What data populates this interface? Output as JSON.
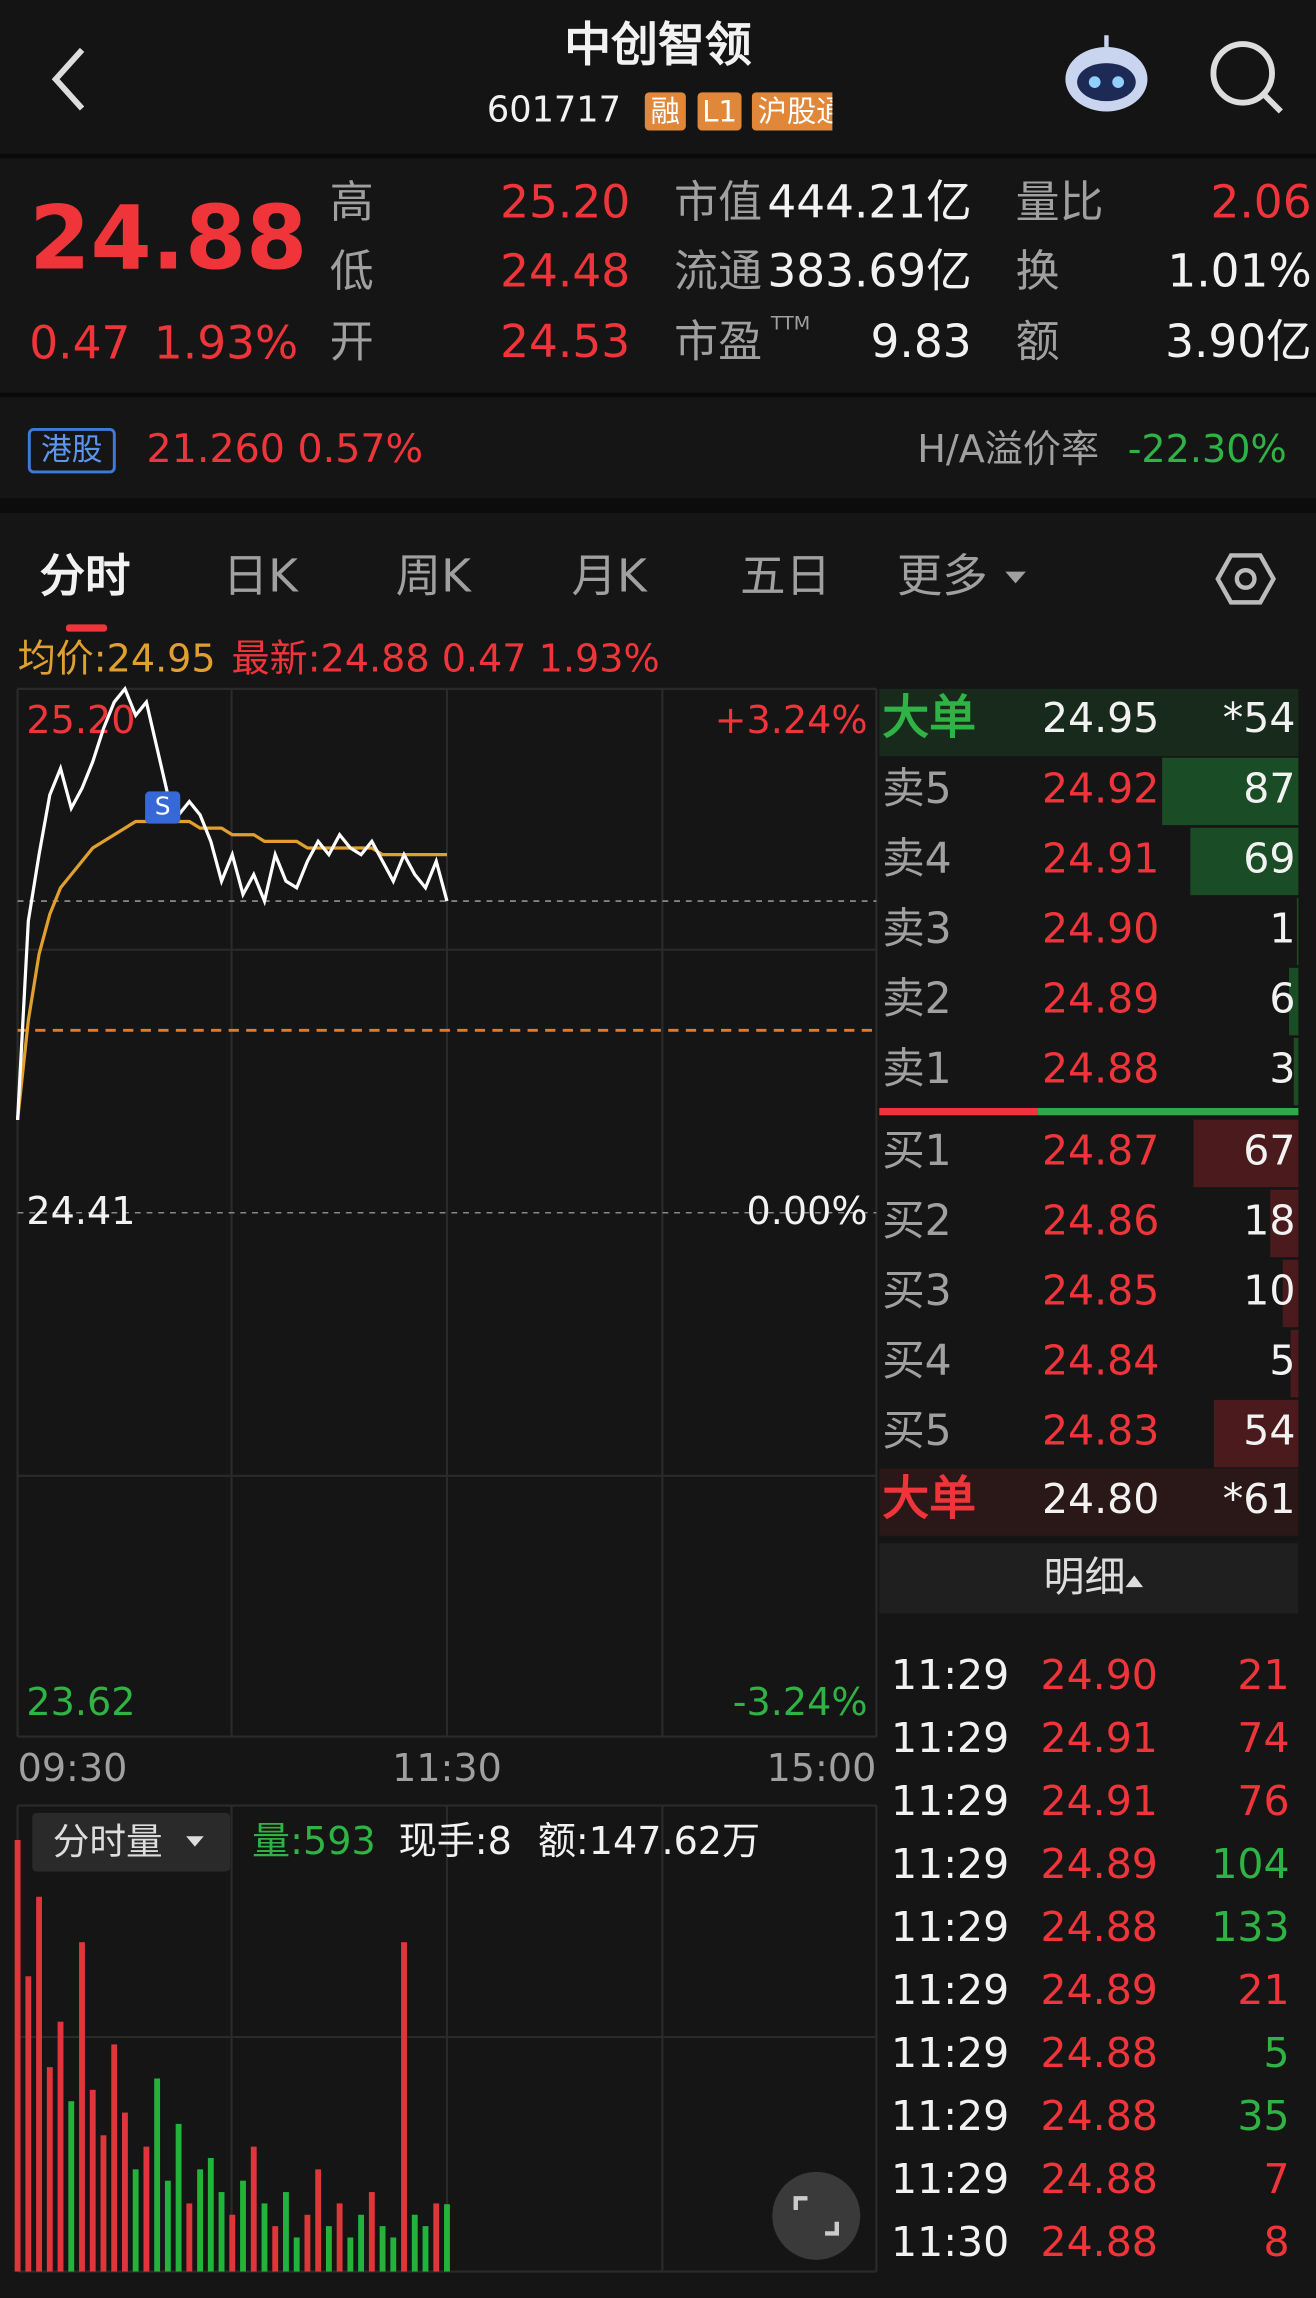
{
  "header": {
    "title": "中创智领",
    "code": "601717",
    "tags": [
      "融",
      "L1",
      "沪股通"
    ]
  },
  "quote": {
    "price": "24.88",
    "change": "0.47",
    "change_pct": "1.93%",
    "stats": [
      {
        "label": "高",
        "value": "25.20"
      },
      {
        "label": "低",
        "value": "24.48"
      },
      {
        "label": "开",
        "value": "24.53"
      },
      {
        "label": "市值",
        "value": "444.21亿"
      },
      {
        "label": "流通",
        "value": "383.69亿"
      },
      {
        "label": "市盈",
        "sup": "TTM",
        "value": "9.83"
      },
      {
        "label": "量比",
        "value": "2.06"
      },
      {
        "label": "换",
        "value": "1.01%"
      },
      {
        "label": "额",
        "value": "3.90亿"
      }
    ]
  },
  "hk": {
    "tag": "港股",
    "price": "21.260",
    "change_pct": "0.57%",
    "premium_label": "H/A溢价率",
    "premium": "-22.30%"
  },
  "tabs": [
    "分时",
    "日K",
    "周K",
    "月K",
    "五日",
    "更多"
  ],
  "intraday": {
    "avg_label": "均价:24.95",
    "latest_label": "最新:24.88 0.47 1.93%",
    "y_labels": [
      {
        "price": "25.20",
        "pct": "+3.24%"
      },
      {
        "price": "24.41",
        "pct": "0.00%"
      },
      {
        "price": "23.62",
        "pct": "-3.24%"
      }
    ],
    "times": [
      "09:30",
      "11:30",
      "15:00"
    ],
    "marker": "S",
    "ylim": [
      23.62,
      25.2
    ],
    "price": [
      24.55,
      24.85,
      24.95,
      25.04,
      25.08,
      25.02,
      25.05,
      25.09,
      25.14,
      25.18,
      25.2,
      25.16,
      25.18,
      25.11,
      25.04,
      25.01,
      25.03,
      25.01,
      24.97,
      24.91,
      24.95,
      24.89,
      24.92,
      24.88,
      24.95,
      24.91,
      24.9,
      24.94,
      24.97,
      24.95,
      24.98,
      24.96,
      24.95,
      24.97,
      24.94,
      24.91,
      24.95,
      24.92,
      24.9,
      24.94,
      24.88
    ],
    "avg": [
      24.55,
      24.7,
      24.8,
      24.86,
      24.9,
      24.92,
      24.94,
      24.96,
      24.97,
      24.98,
      24.99,
      25.0,
      25.0,
      25.0,
      25.0,
      25.0,
      25.0,
      24.99,
      24.99,
      24.99,
      24.98,
      24.98,
      24.98,
      24.97,
      24.97,
      24.97,
      24.97,
      24.96,
      24.96,
      24.96,
      24.96,
      24.96,
      24.96,
      24.96,
      24.95,
      24.95,
      24.95,
      24.95,
      24.95,
      24.95,
      24.95
    ],
    "volume_label": "分时量",
    "volume_stats": [
      "量:593",
      "现手:8",
      "额:147.62万"
    ],
    "volume_ylim": [
      0,
      4000
    ],
    "volume": [
      3800,
      2600,
      3300,
      1800,
      2200,
      1500,
      2900,
      1600,
      1200,
      2000,
      1400,
      900,
      1100,
      1700,
      800,
      1300,
      600,
      900,
      1000,
      700,
      500,
      800,
      1100,
      600,
      400,
      700,
      300,
      500,
      900,
      400,
      600,
      300,
      500,
      700,
      400,
      300,
      2900,
      500,
      400,
      600,
      593
    ]
  },
  "order_book": {
    "sell_big": {
      "label": "大单",
      "price": "24.95",
      "volume": "*54"
    },
    "asks": [
      {
        "label": "卖5",
        "price": "24.92",
        "volume": "87"
      },
      {
        "label": "卖4",
        "price": "24.91",
        "volume": "69"
      },
      {
        "label": "卖3",
        "price": "24.90",
        "volume": "1"
      },
      {
        "label": "卖2",
        "price": "24.89",
        "volume": "6"
      },
      {
        "label": "卖1",
        "price": "24.88",
        "volume": "3"
      }
    ],
    "bids": [
      {
        "label": "买1",
        "price": "24.87",
        "volume": "67"
      },
      {
        "label": "买2",
        "price": "24.86",
        "volume": "18"
      },
      {
        "label": "买3",
        "price": "24.85",
        "volume": "10"
      },
      {
        "label": "买4",
        "price": "24.84",
        "volume": "5"
      },
      {
        "label": "买5",
        "price": "24.83",
        "volume": "54"
      }
    ],
    "buy_big": {
      "label": "大单",
      "price": "24.80",
      "volume": "*61"
    }
  },
  "detail": {
    "title": "明细",
    "rows": [
      {
        "time": "11:29",
        "price": "24.90",
        "volume": "21",
        "color": "red"
      },
      {
        "time": "11:29",
        "price": "24.91",
        "volume": "74",
        "color": "red"
      },
      {
        "time": "11:29",
        "price": "24.91",
        "volume": "76",
        "color": "red"
      },
      {
        "time": "11:29",
        "price": "24.89",
        "volume": "104",
        "color": "green"
      },
      {
        "time": "11:29",
        "price": "24.88",
        "volume": "133",
        "color": "green"
      },
      {
        "time": "11:29",
        "price": "24.89",
        "volume": "21",
        "color": "red"
      },
      {
        "time": "11:29",
        "price": "24.88",
        "volume": "5",
        "color": "green"
      },
      {
        "time": "11:29",
        "price": "24.88",
        "volume": "35",
        "color": "green"
      },
      {
        "time": "11:29",
        "price": "24.88",
        "volume": "7",
        "color": "red"
      },
      {
        "time": "11:30",
        "price": "24.88",
        "volume": "8",
        "color": "red"
      }
    ]
  }
}
